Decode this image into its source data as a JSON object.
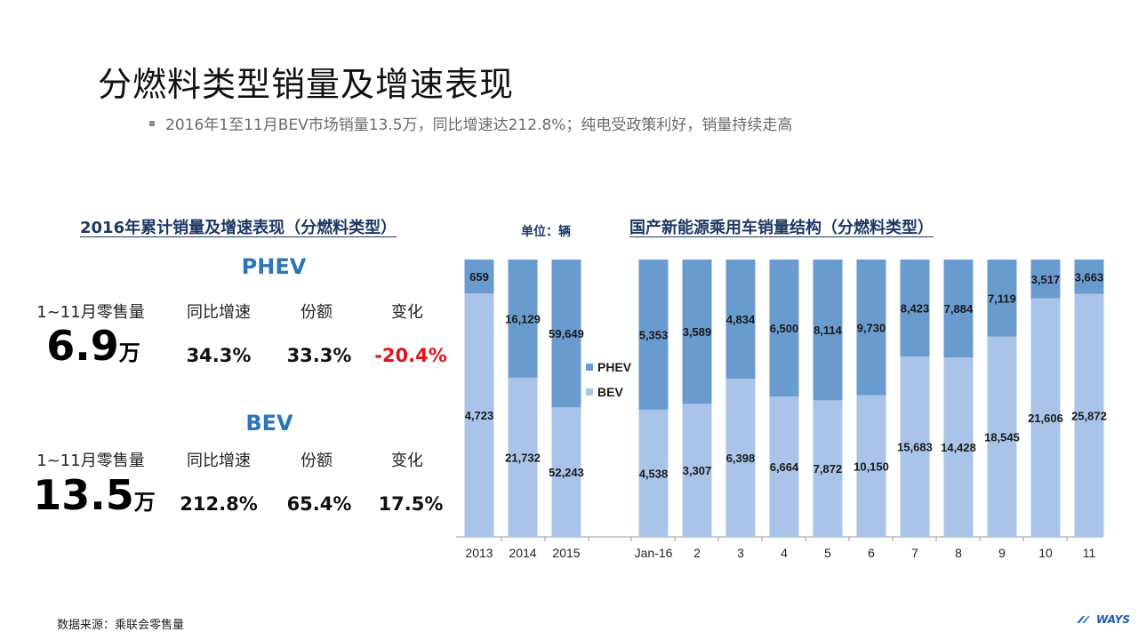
{
  "title": "分燃料类型销量及增速表现",
  "bullet": "2016年1至11月BEV市场销量13.5万，同比增速达212.8%；纯电受政策利好，销量持续走高",
  "left_section_title": "2016年累计销量及增速表现（分燃料类型）",
  "unit_label": "单位：辆",
  "right_section_title": "国产新能源乘用车销量结构（分燃料类型）",
  "kpis": [
    {
      "title": "PHEV",
      "headers": [
        "1~11月零售量",
        "同比增速",
        "份额",
        "变化"
      ],
      "big_value": "6.9",
      "big_unit": "万",
      "growth": "34.3%",
      "share": "33.3%",
      "change": "-20.4%",
      "change_negative": true
    },
    {
      "title": "BEV",
      "headers": [
        "1~11月零售量",
        "同比增速",
        "份额",
        "变化"
      ],
      "big_value": "13.5",
      "big_unit": "万",
      "growth": "212.8%",
      "share": "65.4%",
      "change": "17.5%",
      "change_negative": false
    }
  ],
  "chart_data": [
    {
      "type": "bar",
      "stacking": "percent",
      "categories": [
        "2013",
        "2014",
        "2015"
      ],
      "series": [
        {
          "name": "BEV",
          "color": "#a9c4e8",
          "values": [
            4723,
            21732,
            52243
          ]
        },
        {
          "name": "PHEV",
          "color": "#6a9bcf",
          "values": [
            659,
            16129,
            59649
          ]
        }
      ],
      "ylim": [
        0,
        1
      ],
      "legend": "right"
    },
    {
      "type": "bar",
      "stacking": "percent",
      "categories": [
        "Jan-16",
        "2",
        "3",
        "4",
        "5",
        "6",
        "7",
        "8",
        "9",
        "10",
        "11"
      ],
      "series": [
        {
          "name": "BEV",
          "color": "#a9c4e8",
          "values": [
            4538,
            3307,
            6398,
            6664,
            7872,
            10150,
            15683,
            14428,
            18545,
            21606,
            25872
          ]
        },
        {
          "name": "PHEV",
          "color": "#6a9bcf",
          "values": [
            5353,
            3589,
            4834,
            6500,
            8114,
            9730,
            8423,
            7884,
            7119,
            3517,
            3663
          ]
        }
      ],
      "ylim": [
        0,
        1
      ]
    }
  ],
  "legend": [
    {
      "label": "PHEV",
      "color": "#6a9bcf"
    },
    {
      "label": "BEV",
      "color": "#a9c4e8"
    }
  ],
  "footer_source": "数据来源：乘联会零售量",
  "logo_text": "WAYS"
}
